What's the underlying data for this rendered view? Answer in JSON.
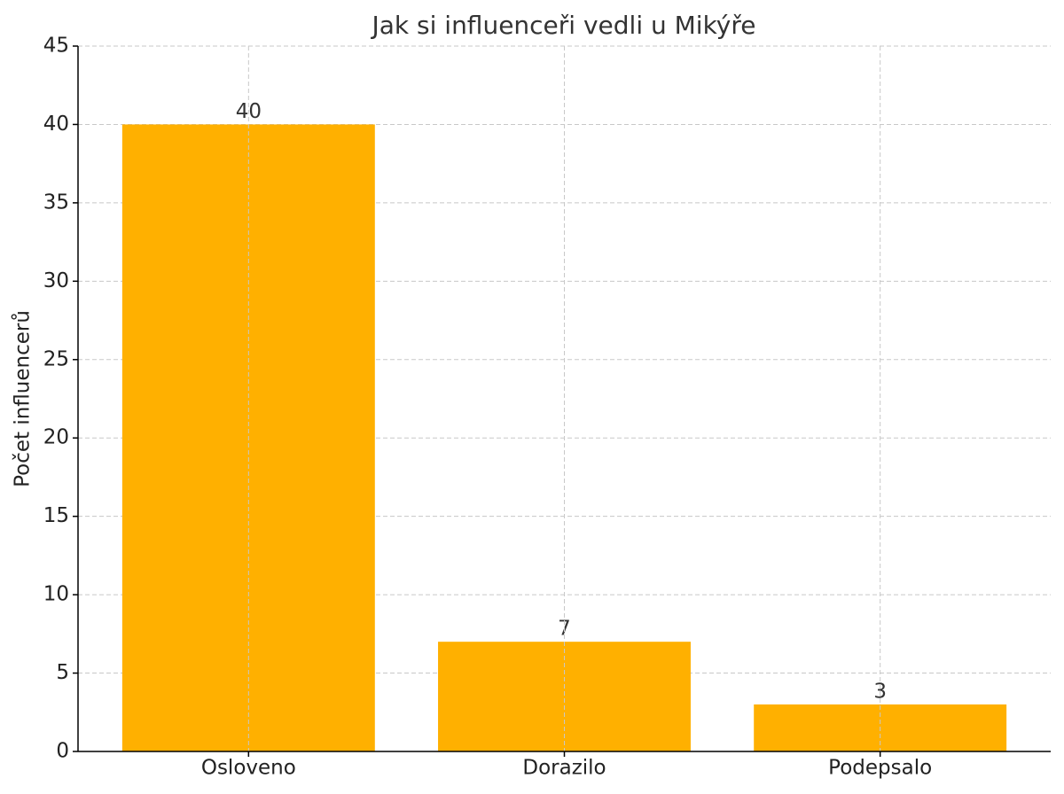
{
  "chart_data": {
    "type": "bar",
    "title": "Jak si influenceři vedli u Mikýře",
    "y_label": "Počet influencerů",
    "categories": [
      "Osloveno",
      "Dorazilo",
      "Podepsalo"
    ],
    "values": [
      40,
      7,
      3
    ],
    "color": "#ffb000",
    "ylim": [
      0,
      45
    ],
    "yticks": [
      0,
      5,
      10,
      15,
      20,
      25,
      30,
      35,
      40,
      45
    ],
    "grid": true
  }
}
